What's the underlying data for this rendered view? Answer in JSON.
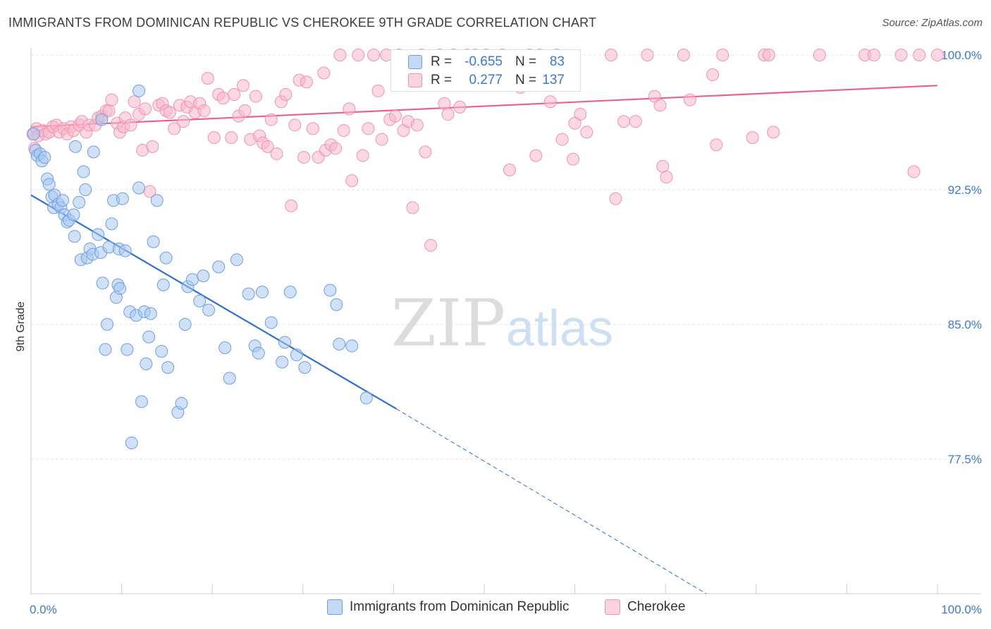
{
  "title": "IMMIGRANTS FROM DOMINICAN REPUBLIC VS CHEROKEE 9TH GRADE CORRELATION CHART",
  "source": "Source: ZipAtlas.com",
  "watermark": {
    "zip": "ZIP",
    "atlas": "atlas"
  },
  "colors": {
    "blue_fill": "#aac8f0",
    "blue_stroke": "#6d9fe0",
    "blue_line": "#2f6fd0",
    "pink_fill": "#f7b8cb",
    "pink_stroke": "#ef93b1",
    "pink_line": "#e8628f",
    "axis_text": "#3b78d8"
  },
  "legend": {
    "items": [
      {
        "label": "Immigrants from Dominican Republic",
        "color": "#c5d9f5"
      },
      {
        "label": "Cherokee",
        "color": "#fbd3e0"
      }
    ]
  },
  "stats": {
    "rows": [
      {
        "r_label": "R =",
        "r_value": "-0.655",
        "n_label": "N =",
        "n_value": "83"
      },
      {
        "r_label": "R =",
        "r_value": "0.277",
        "n_label": "N =",
        "n_value": "137"
      }
    ]
  },
  "chart_data": {
    "type": "scatter",
    "title": "IMMIGRANTS FROM DOMINICAN REPUBLIC VS CHEROKEE 9TH GRADE CORRELATION CHART",
    "xlabel": "",
    "ylabel": "9th Grade",
    "xlim": [
      0,
      100
    ],
    "ylim": [
      70,
      100
    ],
    "x_tick_labels": [
      {
        "value": 0,
        "label": "0.0%"
      },
      {
        "value": 100,
        "label": "100.0%"
      }
    ],
    "y_tick_labels": [
      {
        "value": 100,
        "label": "100.0%"
      },
      {
        "value": 92.5,
        "label": "92.5%"
      },
      {
        "value": 85,
        "label": "85.0%"
      },
      {
        "value": 77.5,
        "label": "77.5%"
      }
    ],
    "grid": true,
    "legend_position": "bottom",
    "series": [
      {
        "name": "Immigrants from Dominican Republic",
        "trend": {
          "x0": 0,
          "y0": 92.2,
          "x1": 40.3,
          "y1": 80.3,
          "dash_to_x": 74.5,
          "dash_to_y": 70.0
        },
        "points": [
          [
            0.5,
            94.7
          ],
          [
            0.7,
            94.4
          ],
          [
            1.0,
            94.5
          ],
          [
            1.2,
            94.1
          ],
          [
            1.5,
            94.3
          ],
          [
            1.8,
            93.1
          ],
          [
            2.0,
            92.8
          ],
          [
            2.3,
            92.1
          ],
          [
            2.5,
            91.5
          ],
          [
            2.6,
            92.2
          ],
          [
            3.0,
            91.7
          ],
          [
            3.3,
            91.5
          ],
          [
            3.5,
            91.9
          ],
          [
            3.7,
            91.1
          ],
          [
            4.0,
            90.7
          ],
          [
            4.2,
            90.8
          ],
          [
            4.7,
            91.1
          ],
          [
            4.8,
            89.9
          ],
          [
            5.3,
            91.8
          ],
          [
            5.5,
            88.6
          ],
          [
            5.8,
            93.5
          ],
          [
            6.0,
            92.5
          ],
          [
            6.2,
            88.7
          ],
          [
            6.5,
            89.2
          ],
          [
            6.8,
            88.9
          ],
          [
            6.9,
            94.6
          ],
          [
            7.4,
            90.0
          ],
          [
            7.7,
            89.0
          ],
          [
            7.8,
            96.4
          ],
          [
            7.9,
            87.3
          ],
          [
            8.2,
            83.6
          ],
          [
            8.4,
            85.0
          ],
          [
            8.6,
            89.3
          ],
          [
            8.9,
            90.6
          ],
          [
            9.1,
            91.9
          ],
          [
            9.4,
            86.5
          ],
          [
            9.6,
            87.2
          ],
          [
            9.7,
            89.2
          ],
          [
            9.8,
            87.0
          ],
          [
            10.1,
            92.0
          ],
          [
            10.4,
            89.1
          ],
          [
            10.6,
            83.6
          ],
          [
            10.9,
            85.7
          ],
          [
            11.1,
            78.4
          ],
          [
            11.6,
            85.5
          ],
          [
            11.9,
            92.6
          ],
          [
            12.2,
            80.7
          ],
          [
            12.5,
            85.7
          ],
          [
            12.7,
            82.8
          ],
          [
            13.0,
            84.3
          ],
          [
            13.2,
            85.6
          ],
          [
            13.5,
            89.6
          ],
          [
            13.9,
            91.9
          ],
          [
            14.4,
            83.5
          ],
          [
            14.6,
            87.2
          ],
          [
            14.9,
            88.7
          ],
          [
            15.1,
            82.6
          ],
          [
            16.2,
            80.1
          ],
          [
            16.6,
            80.6
          ],
          [
            17.0,
            85.0
          ],
          [
            17.3,
            87.1
          ],
          [
            17.8,
            87.5
          ],
          [
            18.6,
            86.3
          ],
          [
            19.0,
            87.7
          ],
          [
            19.6,
            85.8
          ],
          [
            20.7,
            88.2
          ],
          [
            21.4,
            83.7
          ],
          [
            21.9,
            82.0
          ],
          [
            22.7,
            88.6
          ],
          [
            24.0,
            86.7
          ],
          [
            24.7,
            83.8
          ],
          [
            25.1,
            83.4
          ],
          [
            25.5,
            86.8
          ],
          [
            26.5,
            85.1
          ],
          [
            27.7,
            82.9
          ],
          [
            28.0,
            84.0
          ],
          [
            28.6,
            86.8
          ],
          [
            29.3,
            83.3
          ],
          [
            30.2,
            82.6
          ],
          [
            33.0,
            86.9
          ],
          [
            33.7,
            86.1
          ],
          [
            34.0,
            83.9
          ],
          [
            35.4,
            83.8
          ],
          [
            37.0,
            80.9
          ],
          [
            11.9,
            98.0
          ],
          [
            0.3,
            95.6
          ],
          [
            4.9,
            94.9
          ]
        ]
      },
      {
        "name": "Cherokee",
        "trend": {
          "x0": 0,
          "y0": 96.0,
          "x1": 100,
          "y1": 98.3
        },
        "points": [
          [
            0.2,
            95.6
          ],
          [
            0.4,
            94.8
          ],
          [
            0.6,
            95.9
          ],
          [
            0.8,
            95.5
          ],
          [
            1.3,
            95.8
          ],
          [
            1.6,
            95.6
          ],
          [
            2.0,
            95.7
          ],
          [
            2.4,
            96.0
          ],
          [
            2.8,
            96.1
          ],
          [
            3.1,
            95.7
          ],
          [
            3.6,
            95.9
          ],
          [
            4.0,
            95.6
          ],
          [
            4.4,
            96.0
          ],
          [
            4.7,
            95.8
          ],
          [
            5.3,
            96.1
          ],
          [
            5.6,
            96.3
          ],
          [
            6.1,
            95.7
          ],
          [
            6.4,
            96.1
          ],
          [
            7.1,
            96.1
          ],
          [
            7.4,
            96.5
          ],
          [
            7.8,
            96.6
          ],
          [
            8.3,
            96.9
          ],
          [
            8.6,
            96.9
          ],
          [
            8.9,
            97.5
          ],
          [
            9.5,
            96.2
          ],
          [
            9.8,
            95.7
          ],
          [
            10.2,
            96.0
          ],
          [
            10.4,
            96.5
          ],
          [
            11.0,
            96.1
          ],
          [
            11.4,
            97.4
          ],
          [
            11.9,
            96.7
          ],
          [
            12.3,
            94.7
          ],
          [
            12.6,
            97.0
          ],
          [
            13.1,
            92.4
          ],
          [
            13.4,
            94.9
          ],
          [
            14.1,
            97.2
          ],
          [
            14.5,
            97.3
          ],
          [
            14.9,
            96.9
          ],
          [
            15.3,
            96.8
          ],
          [
            15.8,
            95.9
          ],
          [
            16.4,
            97.2
          ],
          [
            16.8,
            96.3
          ],
          [
            17.2,
            97.1
          ],
          [
            17.6,
            97.4
          ],
          [
            18.1,
            96.8
          ],
          [
            18.6,
            97.3
          ],
          [
            19.1,
            96.9
          ],
          [
            19.5,
            98.7
          ],
          [
            20.2,
            95.4
          ],
          [
            20.7,
            97.8
          ],
          [
            21.2,
            97.6
          ],
          [
            22.1,
            95.4
          ],
          [
            22.4,
            97.8
          ],
          [
            22.9,
            96.6
          ],
          [
            23.4,
            98.3
          ],
          [
            23.6,
            96.9
          ],
          [
            24.2,
            95.3
          ],
          [
            24.8,
            97.7
          ],
          [
            25.2,
            95.5
          ],
          [
            25.6,
            95.1
          ],
          [
            26.1,
            94.9
          ],
          [
            26.5,
            96.4
          ],
          [
            27.1,
            94.5
          ],
          [
            27.6,
            97.4
          ],
          [
            28.1,
            97.8
          ],
          [
            28.7,
            91.6
          ],
          [
            29.1,
            96.1
          ],
          [
            29.6,
            98.6
          ],
          [
            30.1,
            94.3
          ],
          [
            30.4,
            98.5
          ],
          [
            31.1,
            95.9
          ],
          [
            31.7,
            94.3
          ],
          [
            32.3,
            99.0
          ],
          [
            32.5,
            94.7
          ],
          [
            33.1,
            95.0
          ],
          [
            33.6,
            94.8
          ],
          [
            34.1,
            100.0
          ],
          [
            34.5,
            95.8
          ],
          [
            35.1,
            97.0
          ],
          [
            35.4,
            93.0
          ],
          [
            36.1,
            100.0
          ],
          [
            36.6,
            94.4
          ],
          [
            37.2,
            95.9
          ],
          [
            37.8,
            100.0
          ],
          [
            38.3,
            98.0
          ],
          [
            38.7,
            95.3
          ],
          [
            39.2,
            100.0
          ],
          [
            39.6,
            96.4
          ],
          [
            40.2,
            96.6
          ],
          [
            40.6,
            100.0
          ],
          [
            41.1,
            95.8
          ],
          [
            41.6,
            96.3
          ],
          [
            42.1,
            91.5
          ],
          [
            42.6,
            96.1
          ],
          [
            43.1,
            100.0
          ],
          [
            43.5,
            94.6
          ],
          [
            44.1,
            89.4
          ],
          [
            45.1,
            100.0
          ],
          [
            45.6,
            97.3
          ],
          [
            46.0,
            96.7
          ],
          [
            46.6,
            100.0
          ],
          [
            47.3,
            97.1
          ],
          [
            48.1,
            100.0
          ],
          [
            49.0,
            100.0
          ],
          [
            50.2,
            100.0
          ],
          [
            52.0,
            100.0
          ],
          [
            52.8,
            93.6
          ],
          [
            54.0,
            98.2
          ],
          [
            55.0,
            100.0
          ],
          [
            55.7,
            94.4
          ],
          [
            56.1,
            100.0
          ],
          [
            57.3,
            97.4
          ],
          [
            58.0,
            100.0
          ],
          [
            58.6,
            95.3
          ],
          [
            59.8,
            94.2
          ],
          [
            60.6,
            96.7
          ],
          [
            61.3,
            95.7
          ],
          [
            64.0,
            100.0
          ],
          [
            64.5,
            92.0
          ],
          [
            65.4,
            96.3
          ],
          [
            66.7,
            96.3
          ],
          [
            68.0,
            100.0
          ],
          [
            68.8,
            97.7
          ],
          [
            69.4,
            97.2
          ],
          [
            69.7,
            93.8
          ],
          [
            70.1,
            93.2
          ],
          [
            72.0,
            100.0
          ],
          [
            72.7,
            97.5
          ],
          [
            75.2,
            98.9
          ],
          [
            75.6,
            95.0
          ],
          [
            76.3,
            100.0
          ],
          [
            79.6,
            95.4
          ],
          [
            80.9,
            100.0
          ],
          [
            81.4,
            100.0
          ],
          [
            81.9,
            95.7
          ],
          [
            87.0,
            100.0
          ],
          [
            92.0,
            100.0
          ],
          [
            93.0,
            100.0
          ],
          [
            96.0,
            100.0
          ],
          [
            97.4,
            93.5
          ],
          [
            98.0,
            100.0
          ],
          [
            100.0,
            100.0
          ],
          [
            60.0,
            96.2
          ]
        ]
      }
    ]
  }
}
